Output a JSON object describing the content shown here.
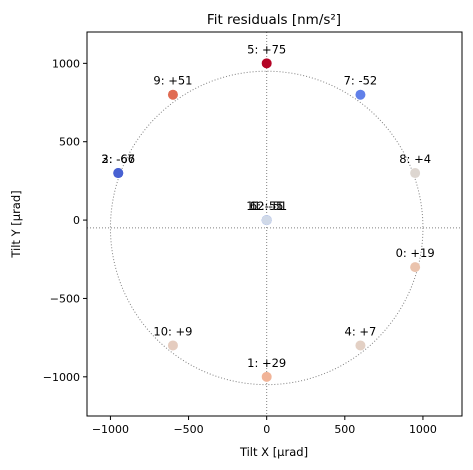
{
  "chart_data": {
    "type": "scatter",
    "title": "Fit residuals [nm/s²]",
    "xlabel": "Tilt X [μrad]",
    "ylabel": "Tilt Y [μrad]",
    "xlim": [
      -1150,
      1250
    ],
    "ylim": [
      -1250,
      1200
    ],
    "xticks": [
      -1000,
      -500,
      0,
      500,
      1000
    ],
    "yticks": [
      -1000,
      -500,
      0,
      500,
      1000
    ],
    "xtick_labels": [
      "−1000",
      "−500",
      "0",
      "500",
      "1000"
    ],
    "ytick_labels": [
      "−1000",
      "−500",
      "0",
      "500",
      "1000"
    ],
    "reference_lines": {
      "x": 0,
      "y": -50
    },
    "reference_circle": {
      "center": [
        0,
        -50
      ],
      "radius": 1000
    },
    "colormap": "coolwarm",
    "color_range": [
      -75,
      75
    ],
    "points": [
      {
        "x": 950,
        "y": -300,
        "value": 19,
        "label": "0: +19",
        "color": "#eac3ad"
      },
      {
        "x": 0,
        "y": -1000,
        "value": 29,
        "label": "1: +29",
        "color": "#f1b498"
      },
      {
        "x": -950,
        "y": 300,
        "value": -66,
        "label": "2: -66",
        "color": "#4961d2"
      },
      {
        "x": -950,
        "y": 300,
        "value": -67,
        "label": "3: -67",
        "color": "#4861d2"
      },
      {
        "x": 600,
        "y": -800,
        "value": 7,
        "label": "4: +7",
        "color": "#e3d0c4"
      },
      {
        "x": 0,
        "y": 1000,
        "value": 75,
        "label": "5: +75",
        "color": "#b40426"
      },
      {
        "x": 0,
        "y": 0,
        "value": -51,
        "label": "6: -51",
        "color": "#6282ea"
      },
      {
        "x": 600,
        "y": 800,
        "value": -52,
        "label": "7: -52",
        "color": "#6180e9"
      },
      {
        "x": 950,
        "y": 300,
        "value": 4,
        "label": "8: +4",
        "color": "#ddd6d0"
      },
      {
        "x": -600,
        "y": 800,
        "value": 51,
        "label": "9: +51",
        "color": "#e06b52"
      },
      {
        "x": -600,
        "y": -800,
        "value": 9,
        "label": "10: +9",
        "color": "#e5ccbf"
      },
      {
        "x": 0,
        "y": 0,
        "value": -51,
        "label": "11: -51",
        "color": "#6282ea"
      },
      {
        "x": 0,
        "y": 0,
        "value": -5,
        "label": "12: -5",
        "color": "#d0d9e8"
      }
    ],
    "grid": false,
    "legend": "none"
  }
}
